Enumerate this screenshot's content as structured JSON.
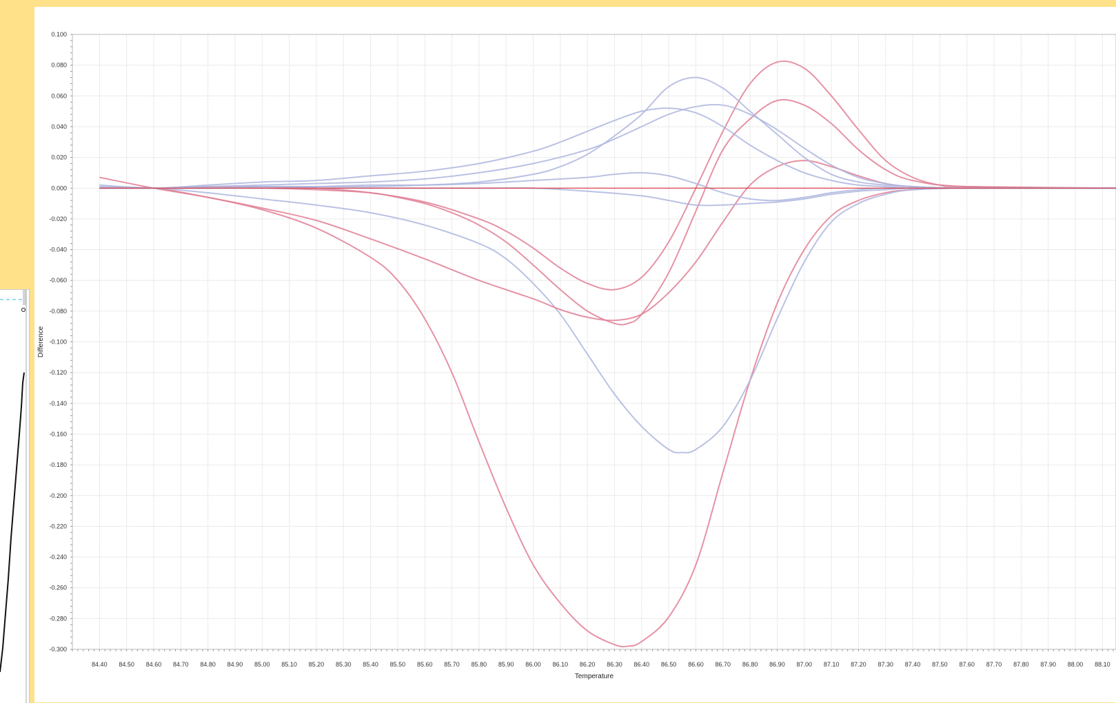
{
  "chart_data": {
    "type": "line",
    "xlabel": "Temperature",
    "ylabel": "Difference",
    "xlim": [
      84.3,
      88.15
    ],
    "ylim": [
      -0.3,
      0.1
    ],
    "grid": true,
    "x_ticks": [
      "84.40",
      "84.50",
      "84.60",
      "84.70",
      "84.80",
      "84.90",
      "85.00",
      "85.10",
      "85.20",
      "85.30",
      "85.40",
      "85.50",
      "85.60",
      "85.70",
      "85.80",
      "85.90",
      "86.00",
      "86.10",
      "86.20",
      "86.30",
      "86.40",
      "86.50",
      "86.60",
      "86.70",
      "86.80",
      "86.90",
      "87.00",
      "87.10",
      "87.20",
      "87.30",
      "87.40",
      "87.50",
      "87.60",
      "87.70",
      "87.80",
      "87.90",
      "88.00",
      "88.10"
    ],
    "y_ticks": [
      "0.100",
      "0.080",
      "0.060",
      "0.040",
      "0.020",
      "0.000",
      "-0.020",
      "-0.040",
      "-0.060",
      "-0.080",
      "-0.100",
      "-0.120",
      "-0.140",
      "-0.160",
      "-0.180",
      "-0.200",
      "-0.220",
      "-0.240",
      "-0.260",
      "-0.280",
      "-0.300"
    ],
    "colors": {
      "red": "#e07f94",
      "blue": "#aeb6de",
      "baseline": "#d9404a"
    },
    "series": [
      {
        "color": "red",
        "x": [
          84.4,
          84.6,
          84.8,
          85.0,
          85.2,
          85.4,
          85.5,
          85.6,
          85.7,
          85.8,
          85.9,
          86.0,
          86.1,
          86.2,
          86.3,
          86.35,
          86.4,
          86.5,
          86.6,
          86.7,
          86.8,
          86.9,
          87.0,
          87.1,
          87.2,
          87.3,
          87.4,
          87.6,
          88.2
        ],
        "y": [
          0.007,
          0.0,
          -0.006,
          -0.014,
          -0.026,
          -0.045,
          -0.06,
          -0.085,
          -0.12,
          -0.165,
          -0.208,
          -0.245,
          -0.27,
          -0.288,
          -0.297,
          -0.298,
          -0.295,
          -0.279,
          -0.245,
          -0.185,
          -0.125,
          -0.075,
          -0.04,
          -0.018,
          -0.008,
          -0.003,
          -0.001,
          0.0,
          0.0
        ]
      },
      {
        "color": "blue",
        "x": [
          84.4,
          84.6,
          84.8,
          85.0,
          85.2,
          85.4,
          85.6,
          85.8,
          85.9,
          86.0,
          86.1,
          86.2,
          86.3,
          86.4,
          86.5,
          86.55,
          86.6,
          86.7,
          86.8,
          86.9,
          87.0,
          87.1,
          87.2,
          87.3,
          87.4,
          87.6,
          88.2
        ],
        "y": [
          0.001,
          0.0,
          -0.003,
          -0.007,
          -0.011,
          -0.016,
          -0.024,
          -0.036,
          -0.046,
          -0.062,
          -0.082,
          -0.108,
          -0.134,
          -0.155,
          -0.17,
          -0.172,
          -0.17,
          -0.155,
          -0.125,
          -0.085,
          -0.048,
          -0.022,
          -0.01,
          -0.004,
          -0.001,
          0.0,
          0.0
        ]
      },
      {
        "color": "red",
        "x": [
          84.4,
          84.6,
          84.8,
          85.0,
          85.2,
          85.4,
          85.6,
          85.8,
          86.0,
          86.1,
          86.2,
          86.3,
          86.4,
          86.5,
          86.6,
          86.7,
          86.8,
          86.9,
          87.0,
          87.1,
          87.2,
          87.3,
          87.4,
          87.6,
          88.2
        ],
        "y": [
          0.0,
          0.0,
          -0.006,
          -0.013,
          -0.021,
          -0.033,
          -0.046,
          -0.06,
          -0.072,
          -0.079,
          -0.084,
          -0.086,
          -0.082,
          -0.068,
          -0.048,
          -0.022,
          0.002,
          0.014,
          0.018,
          0.014,
          0.008,
          0.003,
          0.001,
          0.0,
          0.0
        ]
      },
      {
        "color": "red",
        "x": [
          84.4,
          84.6,
          84.8,
          85.0,
          85.2,
          85.4,
          85.5,
          85.6,
          85.7,
          85.8,
          85.9,
          86.0,
          86.1,
          86.2,
          86.3,
          86.35,
          86.4,
          86.5,
          86.6,
          86.7,
          86.8,
          86.9,
          87.0,
          87.1,
          87.2,
          87.3,
          87.4,
          87.6,
          88.2
        ],
        "y": [
          0.0,
          0.0,
          0.0,
          0.0,
          -0.001,
          -0.003,
          -0.006,
          -0.01,
          -0.016,
          -0.024,
          -0.035,
          -0.05,
          -0.066,
          -0.08,
          -0.088,
          -0.088,
          -0.082,
          -0.055,
          -0.015,
          0.025,
          0.045,
          0.057,
          0.054,
          0.042,
          0.025,
          0.012,
          0.005,
          0.001,
          0.0
        ]
      },
      {
        "color": "red",
        "x": [
          84.4,
          84.6,
          84.8,
          85.0,
          85.2,
          85.4,
          85.6,
          85.8,
          85.9,
          86.0,
          86.1,
          86.2,
          86.3,
          86.4,
          86.5,
          86.6,
          86.7,
          86.8,
          86.9,
          87.0,
          87.1,
          87.2,
          87.3,
          87.4,
          87.5,
          87.6,
          88.2
        ],
        "y": [
          0.0,
          0.0,
          0.001,
          0.001,
          0.0,
          -0.003,
          -0.009,
          -0.02,
          -0.028,
          -0.039,
          -0.052,
          -0.062,
          -0.066,
          -0.058,
          -0.035,
          0.0,
          0.037,
          0.068,
          0.082,
          0.078,
          0.06,
          0.038,
          0.018,
          0.007,
          0.002,
          0.001,
          0.0
        ]
      },
      {
        "color": "blue",
        "x": [
          84.4,
          84.6,
          84.8,
          85.0,
          85.2,
          85.4,
          85.6,
          85.8,
          86.0,
          86.1,
          86.2,
          86.3,
          86.4,
          86.5,
          86.6,
          86.7,
          86.8,
          86.9,
          87.0,
          87.1,
          87.2,
          87.3,
          87.4,
          87.6,
          88.2
        ],
        "y": [
          0.0,
          0.0,
          0.0,
          0.001,
          0.001,
          0.001,
          0.002,
          0.004,
          0.009,
          0.014,
          0.022,
          0.034,
          0.048,
          0.066,
          0.072,
          0.065,
          0.05,
          0.035,
          0.02,
          0.009,
          0.004,
          0.002,
          0.001,
          0.0,
          0.0
        ]
      },
      {
        "color": "blue",
        "x": [
          84.4,
          84.6,
          84.8,
          85.0,
          85.2,
          85.4,
          85.6,
          85.8,
          86.0,
          86.1,
          86.2,
          86.3,
          86.4,
          86.5,
          86.6,
          86.7,
          86.8,
          86.9,
          87.0,
          87.1,
          87.2,
          87.3,
          87.4,
          87.6,
          88.2
        ],
        "y": [
          0.002,
          0.0,
          0.002,
          0.004,
          0.005,
          0.008,
          0.011,
          0.016,
          0.024,
          0.03,
          0.037,
          0.044,
          0.05,
          0.052,
          0.049,
          0.04,
          0.028,
          0.018,
          0.01,
          0.005,
          0.002,
          0.001,
          0.0,
          0.0,
          0.0
        ]
      },
      {
        "color": "blue",
        "x": [
          84.4,
          84.6,
          84.8,
          85.0,
          85.2,
          85.4,
          85.6,
          85.8,
          86.0,
          86.2,
          86.3,
          86.4,
          86.5,
          86.6,
          86.7,
          86.8,
          86.9,
          87.0,
          87.1,
          87.2,
          87.3,
          87.4,
          87.6,
          88.2
        ],
        "y": [
          0.0,
          0.0,
          0.001,
          0.002,
          0.003,
          0.004,
          0.006,
          0.01,
          0.016,
          0.025,
          0.032,
          0.04,
          0.048,
          0.053,
          0.054,
          0.048,
          0.038,
          0.026,
          0.015,
          0.007,
          0.003,
          0.001,
          0.0,
          0.0
        ]
      },
      {
        "color": "blue",
        "x": [
          84.4,
          84.6,
          84.8,
          85.0,
          85.2,
          85.4,
          85.6,
          85.8,
          86.0,
          86.2,
          86.3,
          86.4,
          86.5,
          86.6,
          86.7,
          86.8,
          86.9,
          87.0,
          87.1,
          87.2,
          87.3,
          87.4,
          87.6,
          88.2
        ],
        "y": [
          0.0,
          0.0,
          0.0,
          0.001,
          0.001,
          0.002,
          0.002,
          0.003,
          0.005,
          0.007,
          0.009,
          0.01,
          0.008,
          0.003,
          -0.003,
          -0.007,
          -0.008,
          -0.006,
          -0.003,
          -0.001,
          0.0,
          0.0,
          0.0,
          0.0
        ]
      },
      {
        "color": "blue",
        "x": [
          84.4,
          84.6,
          84.8,
          85.0,
          85.2,
          85.4,
          85.6,
          85.8,
          86.0,
          86.2,
          86.4,
          86.5,
          86.6,
          86.7,
          86.8,
          86.9,
          87.0,
          87.1,
          87.2,
          87.3,
          87.4,
          87.6,
          88.2
        ],
        "y": [
          0.0,
          0.0,
          0.0,
          0.0,
          0.0,
          0.0,
          0.0,
          0.0,
          0.0,
          -0.002,
          -0.005,
          -0.008,
          -0.011,
          -0.011,
          -0.01,
          -0.009,
          -0.007,
          -0.004,
          -0.002,
          -0.001,
          0.0,
          0.0,
          0.0
        ]
      },
      {
        "color": "baseline",
        "x": [
          84.4,
          88.2
        ],
        "y": [
          0.0,
          0.0
        ]
      }
    ]
  }
}
